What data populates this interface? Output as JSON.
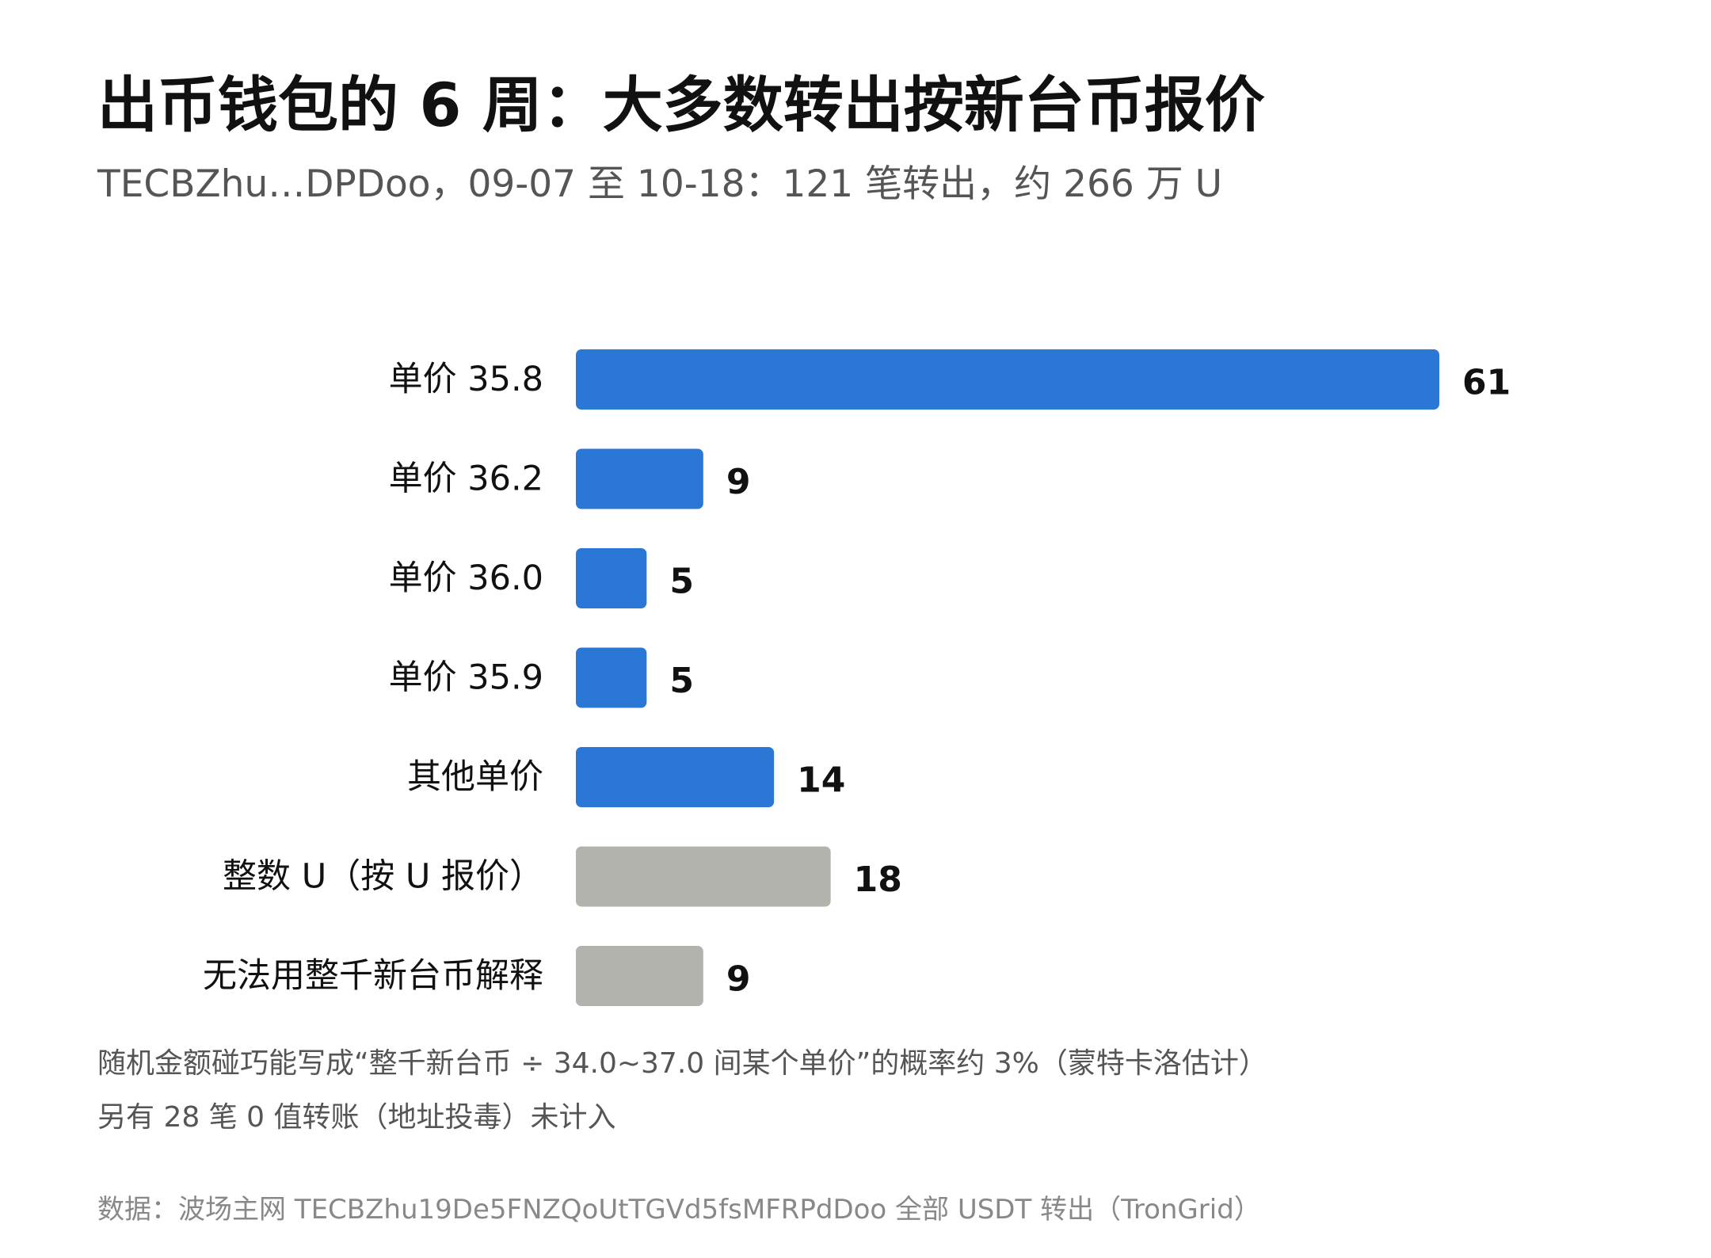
{
  "title": "出币钱包的 6 周：大多数转出按新台币报价",
  "subtitle": "TECBZhu…DPDoo，09-07 至 10-18：121 笔转出，约 266 万 U",
  "notes": [
    "随机金额碰巧能写成“整千新台币 ÷ 34.0~37.0 间某个单价”的概率约 3%（蒙特卡洛估计）",
    "另有 28 笔 0 值转账（地址投毒）未计入"
  ],
  "source": "数据：波场主网 TECBZhu19De5FNZQoUtTGVd5fsMFRPdDoo 全部 USDT 转出（TronGrid）",
  "colors": {
    "primary": "#2b77d6",
    "secondary": "#b3b3ae"
  },
  "chart_data": {
    "type": "bar",
    "orientation": "horizontal",
    "categories": [
      "单价 35.8",
      "单价 36.2",
      "单价 36.0",
      "单价 35.9",
      "其他单价",
      "整数 U（按 U 报价）",
      "无法用整千新台币解释"
    ],
    "values": [
      61,
      9,
      5,
      5,
      14,
      18,
      9
    ],
    "bar_colors": [
      "#2b77d6",
      "#2b77d6",
      "#2b77d6",
      "#2b77d6",
      "#2b77d6",
      "#b3b3ae",
      "#b3b3ae"
    ],
    "data_labels": true,
    "xlim": [
      0,
      61
    ],
    "grid": false
  }
}
